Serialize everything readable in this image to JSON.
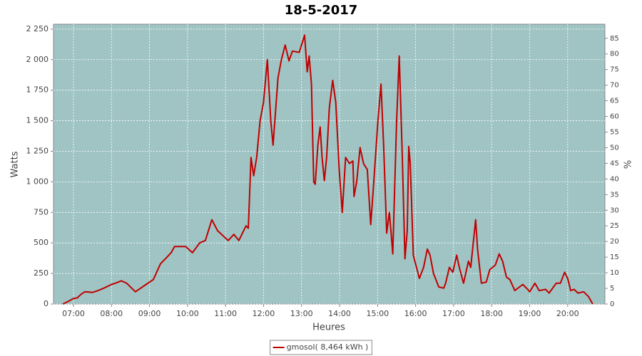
{
  "chart_data": {
    "type": "line",
    "title": "18-5-2017",
    "x_label": "Heures",
    "y_label": "Watts",
    "y2_label": "%",
    "xlim": [
      6.475,
      20.98
    ],
    "xticks": [
      {
        "value": 7,
        "label": "07:00"
      },
      {
        "value": 8,
        "label": "08:00"
      },
      {
        "value": 9,
        "label": "09:00"
      },
      {
        "value": 10,
        "label": "10:00"
      },
      {
        "value": 11,
        "label": "11:00"
      },
      {
        "value": 12,
        "label": "12:00"
      },
      {
        "value": 13,
        "label": "13:00"
      },
      {
        "value": 14,
        "label": "14:00"
      },
      {
        "value": 15,
        "label": "15:00"
      },
      {
        "value": 16,
        "label": "16:00"
      },
      {
        "value": 17,
        "label": "17:00"
      },
      {
        "value": 18,
        "label": "18:00"
      },
      {
        "value": 19,
        "label": "19:00"
      },
      {
        "value": 20,
        "label": "20:00"
      }
    ],
    "ylim": [
      0,
      2290
    ],
    "yticks": [
      0,
      250,
      500,
      750,
      {
        "value": 1000,
        "label": "1 000"
      },
      {
        "value": 1250,
        "label": "1 250"
      },
      {
        "value": 1500,
        "label": "1 500"
      },
      {
        "value": 1750,
        "label": "1 750"
      },
      {
        "value": 2000,
        "label": "2 000"
      },
      {
        "value": 2250,
        "label": "2 250"
      }
    ],
    "y2lim": [
      0,
      89.5
    ],
    "y2ticks": [
      0,
      5,
      10,
      15,
      20,
      25,
      30,
      35,
      40,
      45,
      50,
      55,
      60,
      65,
      70,
      75,
      80,
      85
    ],
    "grid": true,
    "background": "#a0c4c4",
    "legend": "bottom",
    "x": [
      6.72,
      6.85,
      7.0,
      7.1,
      7.2,
      7.3,
      7.5,
      7.65,
      7.8,
      8.0,
      8.1,
      8.26,
      8.4,
      8.63,
      8.91,
      9.1,
      9.29,
      9.45,
      9.57,
      9.66,
      9.95,
      10.13,
      10.32,
      10.47,
      10.64,
      10.79,
      11.07,
      11.22,
      11.35,
      11.54,
      11.6,
      11.67,
      11.74,
      11.82,
      11.91,
      12.0,
      12.1,
      12.19,
      12.25,
      12.38,
      12.47,
      12.57,
      12.67,
      12.76,
      12.94,
      13.08,
      13.15,
      13.2,
      13.26,
      13.32,
      13.36,
      13.43,
      13.49,
      13.54,
      13.6,
      13.66,
      13.73,
      13.82,
      13.9,
      13.99,
      14.07,
      14.16,
      14.26,
      14.35,
      14.38,
      14.45,
      14.54,
      14.63,
      14.73,
      14.82,
      14.9,
      15.01,
      15.09,
      15.16,
      15.24,
      15.31,
      15.35,
      15.4,
      15.5,
      15.57,
      15.65,
      15.72,
      15.78,
      15.82,
      15.86,
      15.94,
      16.1,
      16.21,
      16.31,
      16.38,
      16.47,
      16.61,
      16.74,
      16.79,
      16.89,
      16.98,
      17.08,
      17.15,
      17.26,
      17.39,
      17.45,
      17.58,
      17.63,
      17.73,
      17.86,
      17.95,
      18.1,
      18.2,
      18.29,
      18.39,
      18.48,
      18.61,
      18.82,
      18.95,
      19.0,
      19.14,
      19.25,
      19.42,
      19.51,
      19.7,
      19.81,
      19.92,
      20.0,
      20.08,
      20.17,
      20.27,
      20.42,
      20.55,
      20.66
    ],
    "series": [
      {
        "name": "gmosol( 8,464 kWh )",
        "color": "#c00000",
        "values": [
          0,
          20,
          45,
          50,
          80,
          100,
          95,
          110,
          130,
          160,
          170,
          190,
          170,
          100,
          160,
          200,
          330,
          380,
          420,
          470,
          470,
          420,
          500,
          520,
          690,
          600,
          520,
          570,
          520,
          640,
          620,
          1200,
          1050,
          1200,
          1500,
          1650,
          2000,
          1500,
          1300,
          1850,
          2000,
          2120,
          1990,
          2070,
          2060,
          2200,
          1900,
          2030,
          1800,
          1000,
          980,
          1300,
          1450,
          1200,
          1010,
          1200,
          1600,
          1830,
          1650,
          1100,
          750,
          1200,
          1150,
          1170,
          880,
          1000,
          1280,
          1150,
          1100,
          650,
          1000,
          1500,
          1800,
          1300,
          580,
          750,
          600,
          410,
          1500,
          2030,
          1200,
          370,
          600,
          1290,
          1150,
          400,
          210,
          300,
          450,
          400,
          250,
          140,
          130,
          170,
          300,
          260,
          400,
          300,
          170,
          350,
          300,
          690,
          450,
          170,
          180,
          280,
          320,
          410,
          350,
          220,
          200,
          110,
          160,
          120,
          100,
          170,
          110,
          120,
          90,
          170,
          170,
          260,
          210,
          110,
          120,
          90,
          100,
          60,
          0
        ]
      }
    ]
  }
}
